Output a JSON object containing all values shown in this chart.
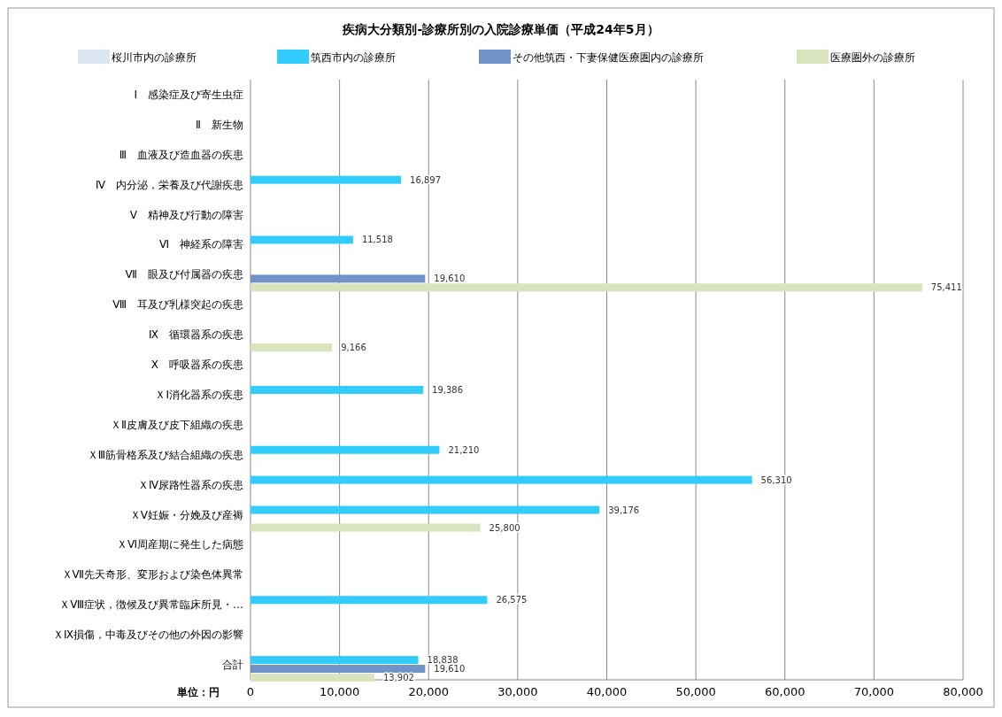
{
  "chart_data": {
    "type": "bar",
    "orientation": "horizontal",
    "title": "疾病大分類別-診療所別の入院診療単価（平成24年5月）",
    "categories": [
      "Ⅰ　感染症及び寄生虫症",
      "Ⅱ　新生物",
      "Ⅲ　血液及び造血器の疾患",
      "Ⅳ　内分泌，栄養及び代謝疾患",
      "Ⅴ　精神及び行動の障害",
      "Ⅵ　神経系の障害",
      "Ⅶ　眼及び付属器の疾患",
      "Ⅷ　耳及び乳様突起の疾患",
      "Ⅸ　循環器系の疾患",
      "Ⅹ　呼吸器系の疾患",
      "ＸⅠ消化器系の疾患",
      "ＸⅡ皮膚及び皮下組織の疾患",
      "ＸⅢ筋骨格系及び結合組織の疾患",
      "ＸⅣ尿路性器系の疾患",
      "ＸⅤ妊娠・分娩及び産褥",
      "ＸⅥ周産期に発生した病態",
      "ＸⅦ先天奇形、変形および染色体異常",
      "ＸⅧ症状，徴候及び異常臨床所見・…",
      "ＸⅨ損傷，中毒及びその他の外因の影響",
      "合計"
    ],
    "series": [
      {
        "name": "桜川市内の診療所",
        "color": "#dce6f2",
        "values": [
          null,
          null,
          null,
          null,
          null,
          null,
          null,
          null,
          null,
          null,
          null,
          null,
          null,
          null,
          null,
          null,
          null,
          null,
          null,
          null
        ]
      },
      {
        "name": "筑西市内の診療所",
        "color": "#33ccff",
        "values": [
          null,
          null,
          null,
          16897,
          null,
          11518,
          null,
          null,
          null,
          null,
          19386,
          null,
          21210,
          56310,
          39176,
          null,
          null,
          26575,
          null,
          18838
        ],
        "value_labels": [
          null,
          null,
          null,
          "16,897",
          null,
          "11,518",
          null,
          null,
          null,
          null,
          "19,386",
          null,
          "21,210",
          "56,310",
          "39,176",
          null,
          null,
          "26,575",
          null,
          "18,838"
        ]
      },
      {
        "name": "その他筑西・下妻保健医療圏内の診療所",
        "color": "#7094c8",
        "values": [
          null,
          null,
          null,
          null,
          null,
          null,
          19610,
          null,
          null,
          null,
          null,
          null,
          null,
          null,
          null,
          null,
          null,
          null,
          null,
          19610
        ],
        "value_labels": [
          null,
          null,
          null,
          null,
          null,
          null,
          "19,610",
          null,
          null,
          null,
          null,
          null,
          null,
          null,
          null,
          null,
          null,
          null,
          null,
          "19,610"
        ]
      },
      {
        "name": "医療圏外の診療所",
        "color": "#d7e4bd",
        "values": [
          null,
          null,
          null,
          null,
          null,
          null,
          75411,
          null,
          9166,
          null,
          null,
          null,
          null,
          null,
          25800,
          null,
          null,
          null,
          null,
          13902
        ],
        "value_labels": [
          null,
          null,
          null,
          null,
          null,
          null,
          "75,411",
          null,
          "9,166",
          null,
          null,
          null,
          null,
          null,
          "25,800",
          null,
          null,
          null,
          null,
          "13,902"
        ]
      }
    ],
    "xlim": [
      0,
      80000
    ],
    "xticks": [
      {
        "value": 0,
        "label": "0"
      },
      {
        "value": 10000,
        "label": "10,000"
      },
      {
        "value": 20000,
        "label": "20,000"
      },
      {
        "value": 30000,
        "label": "30,000"
      },
      {
        "value": 40000,
        "label": "40,000"
      },
      {
        "value": 50000,
        "label": "50,000"
      },
      {
        "value": 60000,
        "label": "60,000"
      },
      {
        "value": 70000,
        "label": "70,000"
      },
      {
        "value": 80000,
        "label": "80,000"
      }
    ],
    "grid": "x",
    "legend": "top",
    "annotations": [
      "単位：円"
    ]
  }
}
